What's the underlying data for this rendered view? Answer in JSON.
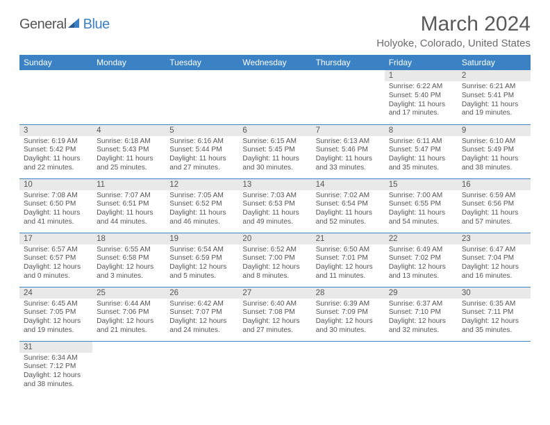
{
  "logo": {
    "part1": "General",
    "part2": "Blue"
  },
  "title": "March 2024",
  "location": "Holyoke, Colorado, United States",
  "colors": {
    "header_bg": "#3b82c4",
    "header_text": "#ffffff",
    "daynum_bg": "#e9e9e9",
    "text": "#555555",
    "page_bg": "#ffffff",
    "row_divider": "#3b82c4"
  },
  "typography": {
    "title_fontsize": 30,
    "location_fontsize": 15,
    "dayheader_fontsize": 12,
    "cell_fontsize": 10.2
  },
  "day_headers": [
    "Sunday",
    "Monday",
    "Tuesday",
    "Wednesday",
    "Thursday",
    "Friday",
    "Saturday"
  ],
  "weeks": [
    [
      null,
      null,
      null,
      null,
      null,
      {
        "n": "1",
        "sunrise": "6:22 AM",
        "sunset": "5:40 PM",
        "hours": "11",
        "mins": "17"
      },
      {
        "n": "2",
        "sunrise": "6:21 AM",
        "sunset": "5:41 PM",
        "hours": "11",
        "mins": "19"
      }
    ],
    [
      {
        "n": "3",
        "sunrise": "6:19 AM",
        "sunset": "5:42 PM",
        "hours": "11",
        "mins": "22"
      },
      {
        "n": "4",
        "sunrise": "6:18 AM",
        "sunset": "5:43 PM",
        "hours": "11",
        "mins": "25"
      },
      {
        "n": "5",
        "sunrise": "6:16 AM",
        "sunset": "5:44 PM",
        "hours": "11",
        "mins": "27"
      },
      {
        "n": "6",
        "sunrise": "6:15 AM",
        "sunset": "5:45 PM",
        "hours": "11",
        "mins": "30"
      },
      {
        "n": "7",
        "sunrise": "6:13 AM",
        "sunset": "5:46 PM",
        "hours": "11",
        "mins": "33"
      },
      {
        "n": "8",
        "sunrise": "6:11 AM",
        "sunset": "5:47 PM",
        "hours": "11",
        "mins": "35"
      },
      {
        "n": "9",
        "sunrise": "6:10 AM",
        "sunset": "5:49 PM",
        "hours": "11",
        "mins": "38"
      }
    ],
    [
      {
        "n": "10",
        "sunrise": "7:08 AM",
        "sunset": "6:50 PM",
        "hours": "11",
        "mins": "41"
      },
      {
        "n": "11",
        "sunrise": "7:07 AM",
        "sunset": "6:51 PM",
        "hours": "11",
        "mins": "44"
      },
      {
        "n": "12",
        "sunrise": "7:05 AM",
        "sunset": "6:52 PM",
        "hours": "11",
        "mins": "46"
      },
      {
        "n": "13",
        "sunrise": "7:03 AM",
        "sunset": "6:53 PM",
        "hours": "11",
        "mins": "49"
      },
      {
        "n": "14",
        "sunrise": "7:02 AM",
        "sunset": "6:54 PM",
        "hours": "11",
        "mins": "52"
      },
      {
        "n": "15",
        "sunrise": "7:00 AM",
        "sunset": "6:55 PM",
        "hours": "11",
        "mins": "54"
      },
      {
        "n": "16",
        "sunrise": "6:59 AM",
        "sunset": "6:56 PM",
        "hours": "11",
        "mins": "57"
      }
    ],
    [
      {
        "n": "17",
        "sunrise": "6:57 AM",
        "sunset": "6:57 PM",
        "hours": "12",
        "mins": "0"
      },
      {
        "n": "18",
        "sunrise": "6:55 AM",
        "sunset": "6:58 PM",
        "hours": "12",
        "mins": "3"
      },
      {
        "n": "19",
        "sunrise": "6:54 AM",
        "sunset": "6:59 PM",
        "hours": "12",
        "mins": "5"
      },
      {
        "n": "20",
        "sunrise": "6:52 AM",
        "sunset": "7:00 PM",
        "hours": "12",
        "mins": "8"
      },
      {
        "n": "21",
        "sunrise": "6:50 AM",
        "sunset": "7:01 PM",
        "hours": "12",
        "mins": "11"
      },
      {
        "n": "22",
        "sunrise": "6:49 AM",
        "sunset": "7:02 PM",
        "hours": "12",
        "mins": "13"
      },
      {
        "n": "23",
        "sunrise": "6:47 AM",
        "sunset": "7:04 PM",
        "hours": "12",
        "mins": "16"
      }
    ],
    [
      {
        "n": "24",
        "sunrise": "6:45 AM",
        "sunset": "7:05 PM",
        "hours": "12",
        "mins": "19"
      },
      {
        "n": "25",
        "sunrise": "6:44 AM",
        "sunset": "7:06 PM",
        "hours": "12",
        "mins": "21"
      },
      {
        "n": "26",
        "sunrise": "6:42 AM",
        "sunset": "7:07 PM",
        "hours": "12",
        "mins": "24"
      },
      {
        "n": "27",
        "sunrise": "6:40 AM",
        "sunset": "7:08 PM",
        "hours": "12",
        "mins": "27"
      },
      {
        "n": "28",
        "sunrise": "6:39 AM",
        "sunset": "7:09 PM",
        "hours": "12",
        "mins": "30"
      },
      {
        "n": "29",
        "sunrise": "6:37 AM",
        "sunset": "7:10 PM",
        "hours": "12",
        "mins": "32"
      },
      {
        "n": "30",
        "sunrise": "6:35 AM",
        "sunset": "7:11 PM",
        "hours": "12",
        "mins": "35"
      }
    ],
    [
      {
        "n": "31",
        "sunrise": "6:34 AM",
        "sunset": "7:12 PM",
        "hours": "12",
        "mins": "38"
      },
      null,
      null,
      null,
      null,
      null,
      null
    ]
  ],
  "labels": {
    "sunrise_prefix": "Sunrise: ",
    "sunset_prefix": "Sunset: ",
    "daylight_prefix": "Daylight: ",
    "hours_word": " hours",
    "and_word": "and ",
    "minutes_word": " minutes."
  }
}
